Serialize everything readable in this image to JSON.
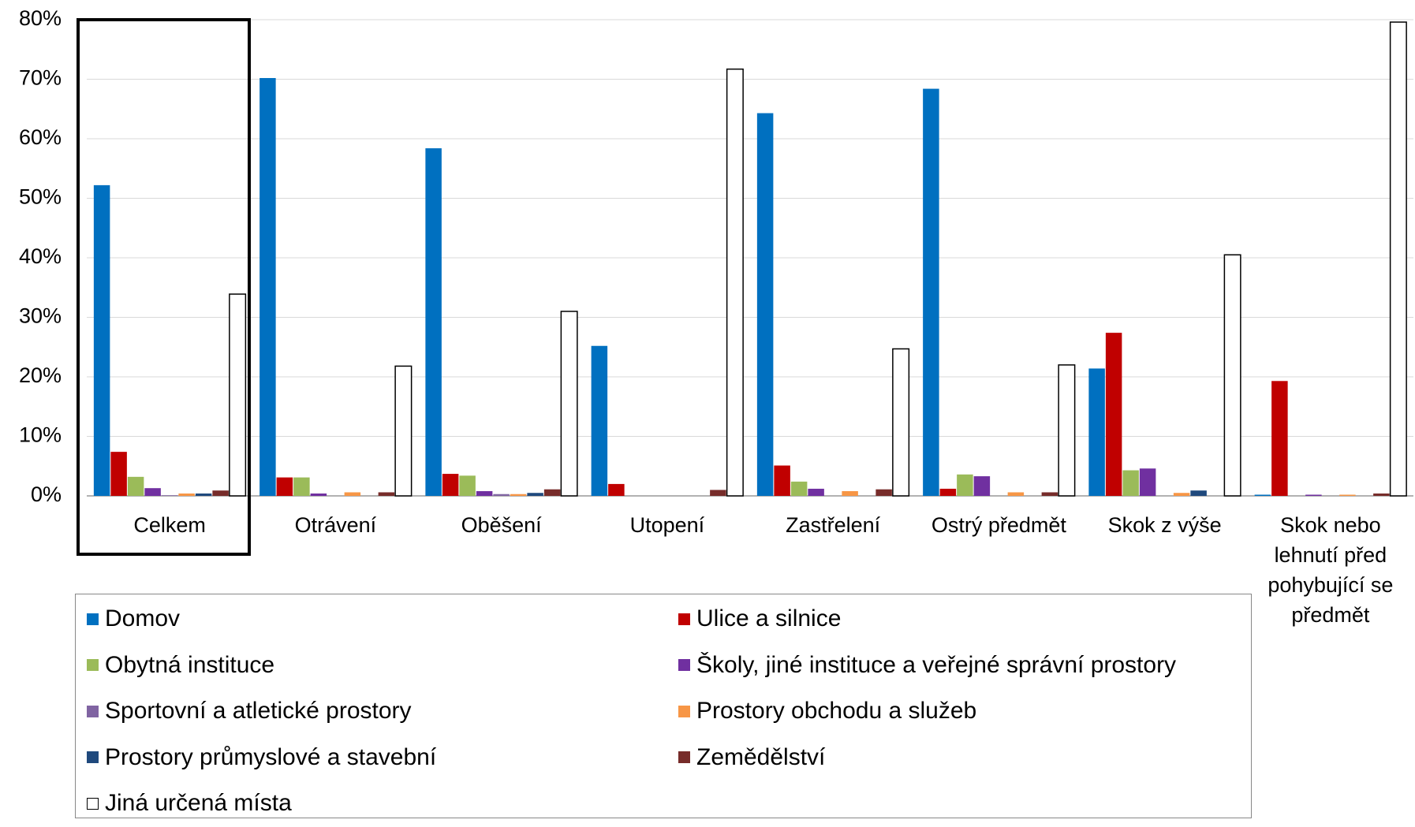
{
  "chart_data": {
    "type": "bar",
    "categories": [
      "Celkem",
      "Otrávení",
      "Oběšení",
      "Utopení",
      "Zastřelení",
      "Ostrý předmět",
      "Skok z výše",
      "Skok nebo lehnutí před pohybující se předmět"
    ],
    "series": [
      {
        "name": "Domov",
        "color": "#0070c0",
        "values": [
          52.2,
          70.2,
          58.4,
          25.2,
          64.3,
          68.4,
          21.4,
          0.2
        ]
      },
      {
        "name": "Ulice a silnice",
        "color": "#c00000",
        "values": [
          7.4,
          3.1,
          3.7,
          2.0,
          5.1,
          1.2,
          27.4,
          19.3
        ]
      },
      {
        "name": "Obytná instituce",
        "color": "#9bbb59",
        "values": [
          3.2,
          3.1,
          3.4,
          0,
          2.4,
          3.6,
          4.3,
          0
        ]
      },
      {
        "name": "Školy, jiné instituce a veřejné správní prostory",
        "color": "#7030a0",
        "values": [
          1.3,
          0.4,
          0.8,
          0,
          1.2,
          3.3,
          4.6,
          0.2
        ]
      },
      {
        "name": "Sportovní a atletické prostory",
        "color": "#8064a2",
        "values": [
          0.1,
          0,
          0.3,
          0,
          0,
          0,
          0,
          0
        ]
      },
      {
        "name": "Prostory obchodu a služeb",
        "color": "#f79646",
        "values": [
          0.4,
          0.6,
          0.3,
          0,
          0.8,
          0.6,
          0.5,
          0.2
        ]
      },
      {
        "name": "Prostory průmyslové a stavební",
        "color": "#1f497d",
        "values": [
          0.4,
          0,
          0.5,
          0,
          0,
          0,
          0.9,
          0
        ]
      },
      {
        "name": "Zemědělství",
        "color": "#772c2a",
        "values": [
          0.9,
          0.6,
          1.1,
          1.0,
          1.1,
          0.6,
          0,
          0.4
        ]
      },
      {
        "name": "Jiná určená místa",
        "color": "#ffffff",
        "values": [
          33.9,
          21.8,
          31.0,
          71.7,
          24.7,
          22.0,
          40.5,
          79.6
        ]
      }
    ],
    "ylim": [
      0,
      80
    ],
    "yticks": [
      {
        "value": 0,
        "label": "0%"
      },
      {
        "value": 10,
        "label": "10%"
      },
      {
        "value": 20,
        "label": "20%"
      },
      {
        "value": 30,
        "label": "30%"
      },
      {
        "value": 40,
        "label": "40%"
      },
      {
        "value": 50,
        "label": "50%"
      },
      {
        "value": 60,
        "label": "60%"
      },
      {
        "value": 70,
        "label": "70%"
      },
      {
        "value": 80,
        "label": "80%"
      }
    ],
    "grid": true
  }
}
